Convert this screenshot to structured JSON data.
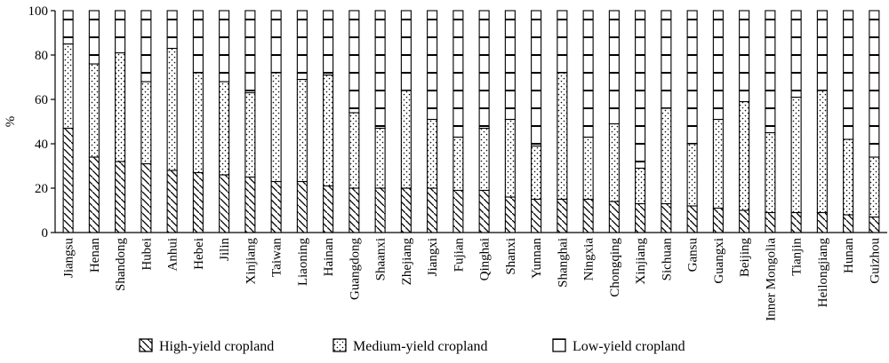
{
  "chart_data": {
    "type": "bar",
    "stacked": true,
    "percent": true,
    "ylabel": "%",
    "xlabel": "",
    "ylim": [
      0,
      100
    ],
    "yticks": [
      0,
      20,
      40,
      60,
      80,
      100
    ],
    "grid": false,
    "legend_position": "bottom",
    "categories": [
      "Jiangsu",
      "Henan",
      "Shandong",
      "Hubei",
      "Anhui",
      "Hebei",
      "Jilin",
      "Xinjiang",
      "Taiwan",
      "Liaoning",
      "Hainan",
      "Guangdong",
      "Shaanxi",
      "Zhejiang",
      "Jiangxi",
      "Fujian",
      "Qinghai",
      "Shanxi",
      "Yunnan",
      "Shanghai",
      "Ningxia",
      "Chongqing",
      "Xinjiang",
      "Sichuan",
      "Gansu",
      "Guangxi",
      "Beijing",
      "Inner Mongolia",
      "Tianjin",
      "Heilongjiang",
      "Hunan",
      "Guizhou"
    ],
    "series": [
      {
        "name": "High-yield cropland",
        "pattern": "diagonal",
        "values": [
          47,
          34,
          32,
          31,
          28,
          27,
          26,
          25,
          23,
          23,
          21,
          20,
          20,
          20,
          20,
          19,
          19,
          16,
          15,
          15,
          15,
          14,
          13,
          13,
          12,
          11,
          10,
          9,
          9,
          9,
          8,
          7
        ]
      },
      {
        "name": "Medium-yield cropland",
        "pattern": "dots",
        "values": [
          38,
          42,
          49,
          37,
          55,
          45,
          42,
          38,
          49,
          46,
          50,
          34,
          27,
          44,
          31,
          24,
          28,
          35,
          24,
          57,
          28,
          35,
          16,
          43,
          28,
          40,
          49,
          36,
          52,
          55,
          34,
          27
        ]
      },
      {
        "name": "Low-yield cropland",
        "pattern": "lines",
        "values": [
          15,
          24,
          19,
          32,
          17,
          28,
          32,
          37,
          28,
          31,
          29,
          46,
          53,
          36,
          49,
          57,
          53,
          49,
          61,
          28,
          57,
          51,
          71,
          44,
          60,
          49,
          41,
          55,
          39,
          36,
          58,
          66
        ]
      }
    ]
  }
}
